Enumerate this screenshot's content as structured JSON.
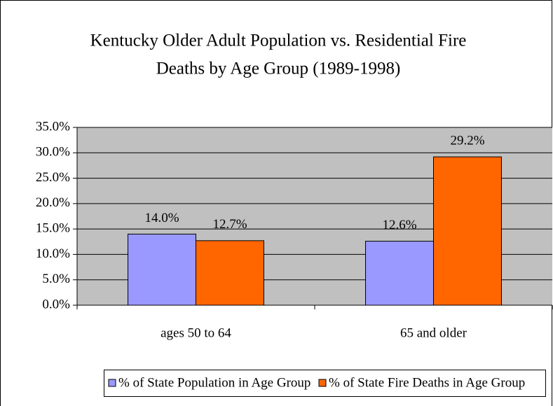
{
  "chart_data": {
    "type": "bar",
    "title": [
      "Kentucky Older Adult Population vs. Residential Fire",
      "Deaths by Age Group (1989-1998)"
    ],
    "categories": [
      "ages 50 to 64",
      "65 and older"
    ],
    "series": [
      {
        "name": "% of State Population in Age Group",
        "color": "#9999ff",
        "values": [
          14.0,
          12.6
        ],
        "value_labels": [
          "14.0%",
          "12.6%"
        ]
      },
      {
        "name": "% of State Fire Deaths in Age Group",
        "color": "#ff6600",
        "values": [
          12.7,
          29.2
        ],
        "value_labels": [
          "12.7%",
          "29.2%"
        ]
      }
    ],
    "ylim": [
      0,
      35
    ],
    "yticks": [
      {
        "value": 0,
        "label": "0.0%"
      },
      {
        "value": 5,
        "label": "5.0%"
      },
      {
        "value": 10,
        "label": "10.0%"
      },
      {
        "value": 15,
        "label": "15.0%"
      },
      {
        "value": 20,
        "label": "20.0%"
      },
      {
        "value": 25,
        "label": "25.0%"
      },
      {
        "value": 30,
        "label": "30.0%"
      },
      {
        "value": 35,
        "label": "35.0%"
      }
    ],
    "grid": true,
    "legend": "bottom"
  }
}
